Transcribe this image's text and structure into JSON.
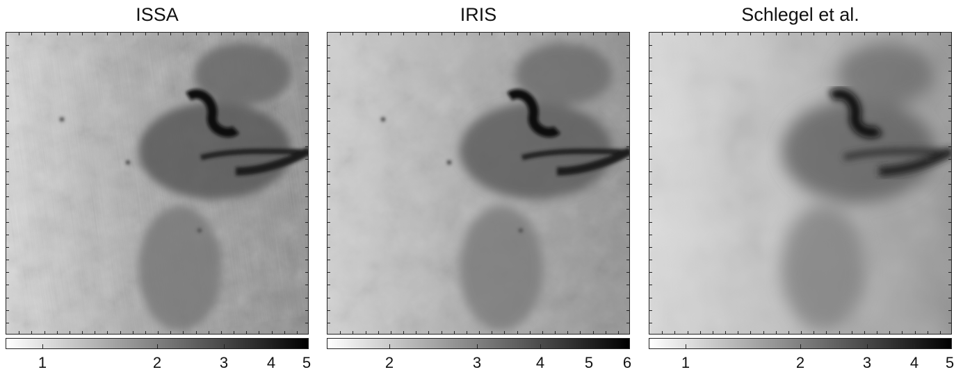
{
  "panels": [
    {
      "title": "ISSA",
      "colorbar": {
        "ticks": [
          "1",
          "2",
          "3",
          "4",
          "5"
        ]
      }
    },
    {
      "title": "IRIS",
      "colorbar": {
        "ticks": [
          "2",
          "3",
          "4",
          "5",
          "6"
        ]
      }
    },
    {
      "title": "Schlegel et al.",
      "colorbar": {
        "ticks": [
          "1",
          "2",
          "3",
          "4",
          "5"
        ]
      }
    }
  ]
}
